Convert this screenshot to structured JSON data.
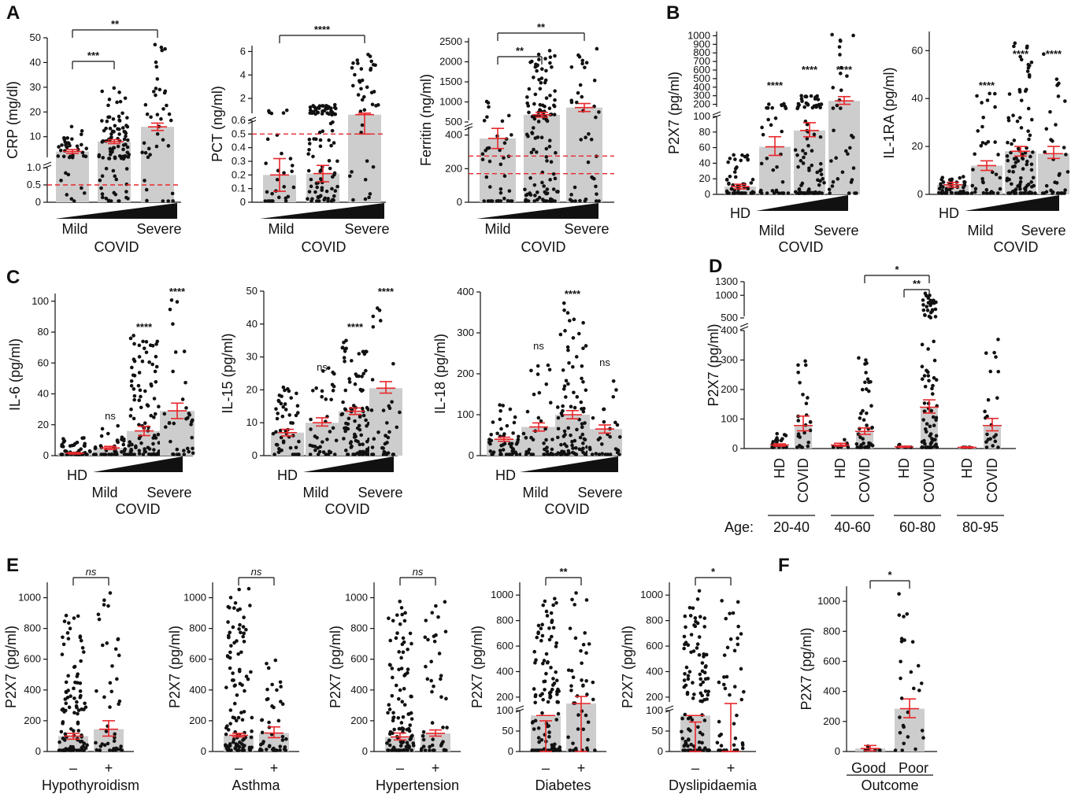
{
  "panels": {
    "A": "A",
    "B": "B",
    "C": "C",
    "D": "D",
    "E": "E",
    "F": "F"
  },
  "labels": {
    "covid": "COVID",
    "mild": "Mild",
    "severe": "Severe",
    "hd": "HD",
    "age": "Age:",
    "outcome": "Outcome",
    "good": "Good",
    "poor": "Poor",
    "minus": "–",
    "plus": "+"
  },
  "colors": {
    "bar": "#cdcdcd",
    "dot": "#111111",
    "err": "#e8262b",
    "ref": "#e8262b"
  },
  "chart_data": [
    {
      "id": "crp",
      "type": "bar",
      "ylabel": "CRP (mg/dl)",
      "categories": [
        "Mild",
        "",
        "Severe"
      ],
      "values": [
        4.0,
        8.0,
        14.0
      ],
      "errors": [
        [
          3.2,
          4.8
        ],
        [
          7.2,
          8.8
        ],
        [
          12.5,
          15.5
        ]
      ],
      "ref_line": 0.5,
      "significance": [
        {
          "from": 0,
          "to": 1,
          "label": "***"
        },
        {
          "from": 0,
          "to": 2,
          "label": "**"
        }
      ],
      "ticks": [
        "0",
        "0.5",
        "1.0",
        "10",
        "20",
        "30",
        "40",
        "50"
      ]
    },
    {
      "id": "pct",
      "type": "bar",
      "ylabel": "PCT (ng/ml)",
      "categories": [
        "Mild",
        "",
        "Severe"
      ],
      "values": [
        0.2,
        0.21,
        0.62
      ],
      "errors": [
        [
          0.08,
          0.32
        ],
        [
          0.15,
          0.27
        ],
        [
          0.5,
          0.75
        ]
      ],
      "ref_line": 0.5,
      "significance": [
        {
          "from": 0,
          "to": 2,
          "label": "****"
        }
      ],
      "ticks": [
        "0",
        "0.1",
        "0.2",
        "0.3",
        "0.4",
        "0.5",
        "0.6",
        "2",
        "4",
        "6"
      ]
    },
    {
      "id": "ferritin",
      "type": "bar",
      "ylabel": "Ferritin (ng/ml)",
      "categories": [
        "Mild",
        "",
        "Severe"
      ],
      "values": [
        380,
        680,
        860
      ],
      "errors": [
        [
          320,
          440
        ],
        [
          620,
          740
        ],
        [
          760,
          960
        ]
      ],
      "ref_lines": [
        170,
        275
      ],
      "significance": [
        {
          "from": 0,
          "to": 1,
          "label": "**"
        },
        {
          "from": 0,
          "to": 2,
          "label": "**"
        }
      ],
      "ticks": [
        "0",
        "200",
        "400",
        "500",
        "1000",
        "1500",
        "2000",
        "2500"
      ]
    },
    {
      "id": "p2x7_b",
      "type": "bar",
      "ylabel": "P2X7 (pg/ml)",
      "categories": [
        "HD",
        "Mild",
        "",
        "Severe"
      ],
      "values": [
        10,
        61,
        82,
        240
      ],
      "errors": [
        [
          7,
          13
        ],
        [
          50,
          74
        ],
        [
          74,
          92
        ],
        [
          200,
          290
        ]
      ],
      "significance": [
        {
          "at": 1,
          "label": "****"
        },
        {
          "at": 2,
          "label": "****"
        },
        {
          "at": 3,
          "label": "****"
        }
      ],
      "ticks": [
        "0",
        "20",
        "40",
        "60",
        "80",
        "100",
        "200",
        "300",
        "400",
        "500",
        "600",
        "700",
        "800",
        "900",
        "1000"
      ]
    },
    {
      "id": "il1ra",
      "type": "bar",
      "ylabel": "IL-1RA (pg/ml)",
      "categories": [
        "HD",
        "Mild",
        "",
        "Severe"
      ],
      "values": [
        4,
        12,
        18,
        17
      ],
      "errors": [
        [
          3,
          5
        ],
        [
          10,
          14
        ],
        [
          16,
          20
        ],
        [
          15,
          20
        ]
      ],
      "significance": [
        {
          "at": 1,
          "label": "****"
        },
        {
          "at": 2,
          "label": "****"
        },
        {
          "at": 3,
          "label": "****"
        }
      ],
      "ticks": [
        "0",
        "20",
        "40",
        "60"
      ]
    },
    {
      "id": "il6",
      "type": "bar",
      "ylabel": "IL-6 (pg/ml)",
      "categories": [
        "HD",
        "Mild",
        "",
        "Severe"
      ],
      "values": [
        1.5,
        5,
        16,
        29
      ],
      "errors": [
        [
          1,
          2
        ],
        [
          4,
          6
        ],
        [
          13,
          19
        ],
        [
          24,
          34
        ]
      ],
      "significance": [
        {
          "at": 1,
          "label": "ns"
        },
        {
          "at": 2,
          "label": "****"
        },
        {
          "at": 3,
          "label": "****"
        }
      ],
      "ticks": [
        "0",
        "20",
        "40",
        "60",
        "80",
        "100"
      ]
    },
    {
      "id": "il15",
      "type": "bar",
      "ylabel": "IL-15 (pg/ml)",
      "categories": [
        "HD",
        "Mild",
        "",
        "Severe"
      ],
      "values": [
        7,
        10,
        13.5,
        20.5
      ],
      "errors": [
        [
          6,
          8
        ],
        [
          9,
          11.5
        ],
        [
          12.5,
          14.5
        ],
        [
          19,
          22.5
        ]
      ],
      "significance": [
        {
          "at": 1,
          "label": "ns"
        },
        {
          "at": 2,
          "label": "****"
        },
        {
          "at": 3,
          "label": "****"
        }
      ],
      "ticks": [
        "0",
        "10",
        "20",
        "30",
        "40",
        "50"
      ]
    },
    {
      "id": "il18",
      "type": "bar",
      "ylabel": "IL-18 (pg/ml)",
      "categories": [
        "HD",
        "Mild",
        "",
        "Severe"
      ],
      "values": [
        40,
        70,
        100,
        65
      ],
      "errors": [
        [
          35,
          45
        ],
        [
          60,
          80
        ],
        [
          90,
          110
        ],
        [
          55,
          75
        ]
      ],
      "significance": [
        {
          "at": 1,
          "label": "ns"
        },
        {
          "at": 2,
          "label": "****"
        },
        {
          "at": 3,
          "label": "ns"
        }
      ],
      "ticks": [
        "0",
        "100",
        "200",
        "300",
        "400"
      ]
    },
    {
      "id": "p2x7_age",
      "type": "bar",
      "ylabel": "P2X7 (pg/ml)",
      "categories": [
        "HD",
        "COVID",
        "HD",
        "COVID",
        "HD",
        "COVID",
        "HD",
        "COVID"
      ],
      "age_groups": [
        "20-40",
        "40-60",
        "60-80",
        "80-95"
      ],
      "values": [
        12,
        78,
        12,
        58,
        6,
        140,
        4,
        78
      ],
      "errors": [
        [
          8,
          16
        ],
        [
          60,
          110
        ],
        [
          8,
          18
        ],
        [
          48,
          70
        ],
        [
          4,
          8
        ],
        [
          120,
          165
        ],
        [
          2,
          6
        ],
        [
          60,
          102
        ]
      ],
      "significance": [
        {
          "from": 3,
          "to": 5,
          "label": "*"
        },
        {
          "from": 4,
          "to": 5,
          "label": "**"
        }
      ],
      "ticks": [
        "0",
        "100",
        "200",
        "300",
        "400",
        "500",
        "1000",
        "1300"
      ]
    },
    {
      "id": "hypothyroidism",
      "type": "bar",
      "ylabel": "P2X7 (pg/ml)",
      "xlabel": "Hypothyroidism",
      "categories": [
        "–",
        "+"
      ],
      "values": [
        100,
        145
      ],
      "errors": [
        [
          80,
          118
        ],
        [
          100,
          200
        ]
      ],
      "significance": [
        {
          "from": 0,
          "to": 1,
          "label": "ns"
        }
      ],
      "ticks": [
        "0",
        "200",
        "400",
        "600",
        "800",
        "1000"
      ]
    },
    {
      "id": "asthma",
      "type": "bar",
      "ylabel": "P2X7 (pg/ml)",
      "xlabel": "Asthma",
      "categories": [
        "–",
        "+"
      ],
      "values": [
        105,
        120
      ],
      "errors": [
        [
          95,
          118
        ],
        [
          90,
          160
        ]
      ],
      "significance": [
        {
          "from": 0,
          "to": 1,
          "label": "ns"
        }
      ],
      "ticks": [
        "0",
        "200",
        "400",
        "600",
        "800",
        "1000"
      ]
    },
    {
      "id": "hypertension",
      "type": "bar",
      "ylabel": "P2X7 (pg/ml)",
      "xlabel": "Hypertension",
      "categories": [
        "–",
        "+"
      ],
      "values": [
        95,
        118
      ],
      "errors": [
        [
          75,
          120
        ],
        [
          100,
          140
        ]
      ],
      "significance": [
        {
          "from": 0,
          "to": 1,
          "label": "ns"
        }
      ],
      "ticks": [
        "0",
        "200",
        "400",
        "600",
        "800",
        "1000"
      ]
    },
    {
      "id": "diabetes",
      "type": "bar",
      "ylabel": "P2X7 (pg/ml)",
      "xlabel": "Diabetes",
      "categories": [
        "–",
        "+"
      ],
      "values": [
        88,
        150
      ],
      "errors": [
        [
          75,
          105
        ],
        [
          120,
          205
        ]
      ],
      "significance": [
        {
          "from": 0,
          "to": 1,
          "label": "**"
        }
      ],
      "ticks": [
        "0",
        "50",
        "100",
        "200",
        "400",
        "600",
        "800",
        "1000"
      ]
    },
    {
      "id": "dyslipidaemia",
      "type": "bar",
      "ylabel": "P2X7 (pg/ml)",
      "xlabel": "Dyslipidaemia",
      "categories": [
        "–",
        "+"
      ],
      "values": [
        88,
        130
      ],
      "errors": [
        [
          72,
          125
        ],
        [
          110,
          150
        ]
      ],
      "significance": [
        {
          "from": 0,
          "to": 1,
          "label": "*"
        }
      ],
      "ticks": [
        "0",
        "50",
        "100",
        "200",
        "400",
        "600",
        "800",
        "1000"
      ]
    },
    {
      "id": "outcome",
      "type": "bar",
      "ylabel": "P2X7 (pg/ml)",
      "xlabel": "Outcome",
      "categories": [
        "Good",
        "Poor"
      ],
      "values": [
        20,
        285
      ],
      "errors": [
        [
          5,
          40
        ],
        [
          225,
          350
        ]
      ],
      "significance": [
        {
          "from": 0,
          "to": 1,
          "label": "*"
        }
      ],
      "ticks": [
        "0",
        "200",
        "400",
        "600",
        "800",
        "1000"
      ]
    }
  ]
}
